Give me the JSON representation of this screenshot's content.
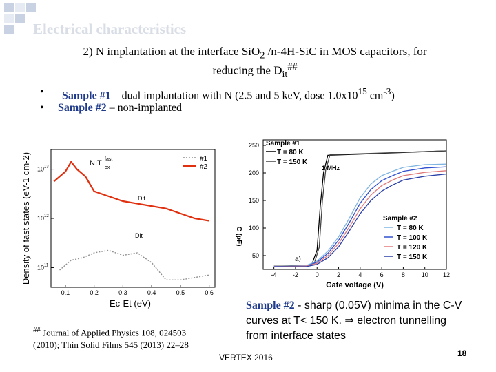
{
  "slide": {
    "title": "Electrical characteristics",
    "subtitle": {
      "prefix": "2) ",
      "underlined": "N implantation ",
      "middle": "at the interface SiO",
      "sub2": "2",
      "rest": " /n-4H-SiC in MOS capacitors, for",
      "line2": "reducing the D",
      "line2_sub": "it",
      "line2_sup": "##"
    },
    "bullets": [
      {
        "marker": "•",
        "label": "Sample #1",
        "text": " – dual implantation with N (2.5 and 5 keV, dose 1.0x10",
        "sup": "15",
        "tail": " cm",
        "sup2": "-3",
        "end": ")"
      },
      {
        "marker": "•",
        "label": "Sample #2",
        "text": " – non-implanted"
      }
    ],
    "reference": {
      "mark": "##",
      "line1": " Journal of Applied Physics 108, 024503",
      "line2": "(2010); Thin Solid Films 545 (2013) 22–28"
    },
    "note": {
      "label": "Sample #2",
      "text": " - sharp (0.05V) minima in the C-V curves at T< 150 K. ⇒ electron tunnelling from interface states"
    },
    "footer": "VERTEX 2016",
    "page_number": "18"
  },
  "colors": {
    "title": "#d8dde6",
    "accent_blue": "#1f3a8a",
    "red": "#e03010",
    "gray": "#707070"
  },
  "chart_data": [
    {
      "type": "line",
      "title": "",
      "xlabel": "Ec-Et (eV)",
      "ylabel": "Density of fast states (eV-1 cm-2)",
      "ylog": true,
      "xlim": [
        0.05,
        0.62
      ],
      "ylim_exp": [
        10.6,
        13.4
      ],
      "x_ticks": [
        "0.1",
        "0.2",
        "0.3",
        "0.4",
        "0.5",
        "0.6"
      ],
      "y_ticks": [
        "10",
        "10",
        "10"
      ],
      "y_tick_exps": [
        "13",
        "12",
        "11"
      ],
      "annotations": [
        "NIT",
        "fast",
        "ox",
        "Dit",
        "Dit"
      ],
      "legend": [
        "#1",
        "#2"
      ],
      "series": [
        {
          "name": "#1",
          "color": "#909090",
          "x": [
            0.08,
            0.12,
            0.16,
            0.2,
            0.25,
            0.3,
            0.35,
            0.4,
            0.45,
            0.5,
            0.55,
            0.6
          ],
          "log_y": [
            10.95,
            11.15,
            11.2,
            11.3,
            11.35,
            11.25,
            11.3,
            11.1,
            10.75,
            10.75,
            10.8,
            10.85
          ]
        },
        {
          "name": "#2",
          "color": "#e03010",
          "x": [
            0.06,
            0.1,
            0.12,
            0.14,
            0.17,
            0.2,
            0.25,
            0.3,
            0.35,
            0.4,
            0.45,
            0.5,
            0.55,
            0.6
          ],
          "log_y": [
            12.75,
            12.95,
            13.15,
            13.0,
            12.85,
            12.55,
            12.45,
            12.35,
            12.3,
            12.25,
            12.2,
            12.1,
            12.0,
            11.95
          ]
        }
      ]
    },
    {
      "type": "line",
      "title": "",
      "xlabel": "Gate voltage (V)",
      "ylabel": "C (pF)",
      "xlim": [
        -5,
        12
      ],
      "ylim": [
        25,
        260
      ],
      "x_ticks": [
        "-4",
        "-2",
        "0",
        "2",
        "4",
        "6",
        "8",
        "10",
        "12"
      ],
      "y_ticks": [
        "50",
        "100",
        "150",
        "200",
        "250"
      ],
      "annotations": [
        "1 MHz",
        "a)"
      ],
      "legend_groups": [
        {
          "title": "Sample #1",
          "entries": [
            "T = 80 K",
            "T = 150 K"
          ]
        },
        {
          "title": "Sample #2",
          "entries": [
            "T = 80 K",
            "T = 100 K",
            "T = 120 K",
            "T = 150 K"
          ]
        }
      ],
      "series": [
        {
          "name": "#1 T = 80 K",
          "color": "#000000",
          "x": [
            -4,
            -0.5,
            0,
            0.3,
            0.6,
            1,
            12
          ],
          "y": [
            33,
            33,
            60,
            140,
            200,
            232,
            240
          ]
        },
        {
          "name": "#1 T = 150 K",
          "color": "#444444",
          "x": [
            -4,
            -0.3,
            0.2,
            0.5,
            0.8,
            1.2,
            12
          ],
          "y": [
            33,
            33,
            65,
            150,
            205,
            233,
            240
          ]
        },
        {
          "name": "#2 T = 80 K",
          "color": "#7fb4e0",
          "x": [
            -4,
            -1,
            0,
            1,
            2,
            3,
            4,
            5,
            6,
            7,
            8,
            10,
            12
          ],
          "y": [
            30,
            32,
            40,
            58,
            84,
            118,
            155,
            180,
            195,
            203,
            210,
            215,
            216
          ]
        },
        {
          "name": "#2 T = 100 K",
          "color": "#3050d0",
          "x": [
            -4,
            -1,
            0,
            1,
            2,
            3,
            4,
            5,
            6,
            7,
            8,
            10,
            12
          ],
          "y": [
            30,
            31,
            38,
            54,
            78,
            110,
            145,
            170,
            186,
            195,
            203,
            209,
            211
          ]
        },
        {
          "name": "#2 T = 120 K",
          "color": "#e07a7a",
          "x": [
            -4,
            -1,
            0,
            1,
            2,
            3,
            4,
            5,
            6,
            7,
            8,
            10,
            12
          ],
          "y": [
            30,
            31,
            36,
            50,
            72,
            102,
            135,
            160,
            177,
            187,
            195,
            201,
            204
          ]
        },
        {
          "name": "#2 T = 150 K",
          "color": "#2a40a8",
          "x": [
            -4,
            -1,
            0,
            1,
            2,
            3,
            4,
            5,
            6,
            7,
            8,
            10,
            12
          ],
          "y": [
            30,
            30,
            34,
            46,
            66,
            95,
            126,
            150,
            167,
            178,
            187,
            194,
            198
          ]
        }
      ]
    }
  ]
}
